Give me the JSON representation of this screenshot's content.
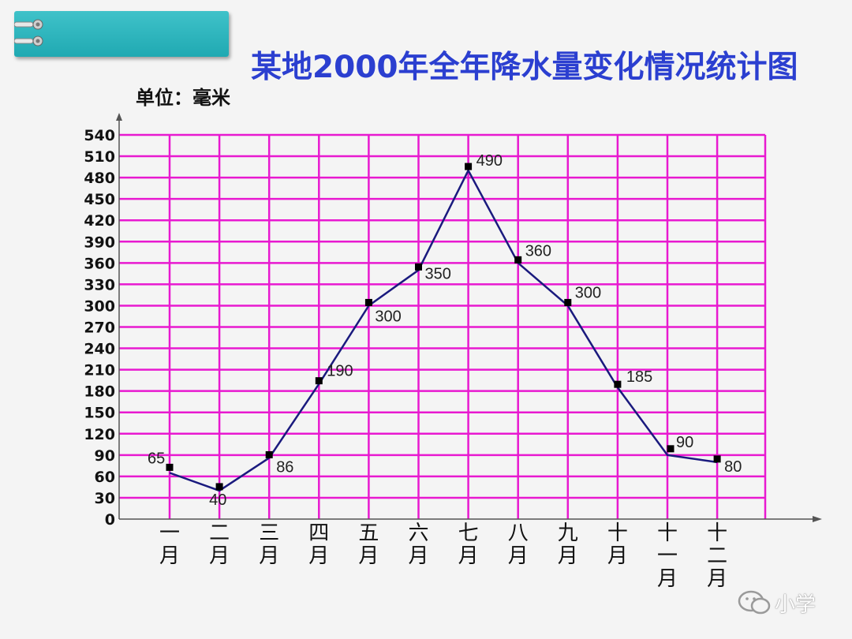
{
  "title": "某地2000年全年降水量变化情况统计图",
  "unit_label": "单位：毫米",
  "watermark": "小学",
  "colors": {
    "title": "#2b3fd0",
    "grid": "#e819d0",
    "line": "#1a1a7e",
    "banner": "#2ab3bb"
  },
  "chart_data": {
    "type": "line",
    "title": "某地2000年全年降水量变化情况统计图",
    "ylabel": "单位：毫米",
    "xlabel": "",
    "categories": [
      "一月",
      "二月",
      "三月",
      "四月",
      "五月",
      "六月",
      "七月",
      "八月",
      "九月",
      "十月",
      "十一月",
      "十二月"
    ],
    "category_tick_lines": [
      [
        "一",
        "月"
      ],
      [
        "二",
        "月"
      ],
      [
        "三",
        "月"
      ],
      [
        "四",
        "月"
      ],
      [
        "五",
        "月"
      ],
      [
        "六",
        "月"
      ],
      [
        "七",
        "月"
      ],
      [
        "八",
        "月"
      ],
      [
        "九",
        "月"
      ],
      [
        "十",
        "月"
      ],
      [
        "十",
        "一",
        "月"
      ],
      [
        "十",
        "二",
        "月"
      ]
    ],
    "series": [
      {
        "values": [
          65,
          40,
          86,
          190,
          300,
          350,
          490,
          360,
          300,
          185,
          90,
          80
        ],
        "value_labels": [
          "65",
          "40",
          "86",
          "190",
          "300",
          "350",
          "490",
          "360",
          "300",
          "185",
          "90",
          "80"
        ]
      }
    ],
    "ylim": [
      0,
      540
    ],
    "yticks": [
      0,
      30,
      60,
      90,
      120,
      150,
      180,
      210,
      240,
      270,
      300,
      330,
      360,
      390,
      420,
      450,
      480,
      510,
      540
    ],
    "grid": true,
    "legend": "none"
  }
}
